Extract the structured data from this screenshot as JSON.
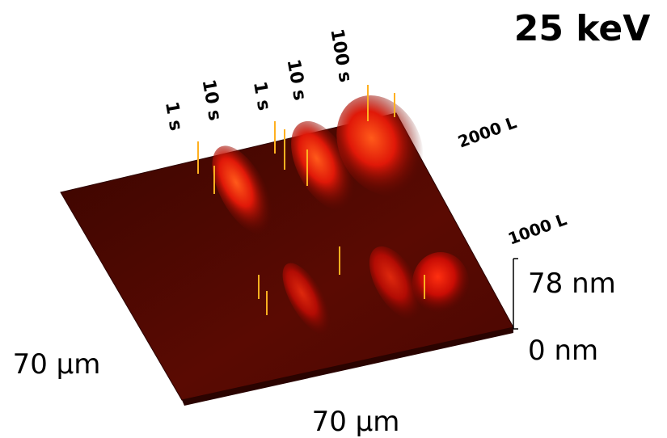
{
  "title": "25 keV",
  "dwell_labels": [
    "1 s",
    "10 s",
    "1 s",
    "10 s",
    "100 s"
  ],
  "dose_labels": [
    "2000 L",
    "1000 L"
  ],
  "z_axis": {
    "max_label": "78 nm",
    "min_label": "0 nm"
  },
  "y_axis": {
    "label": "70 µm"
  },
  "x_axis": {
    "label": "70 µm"
  }
}
